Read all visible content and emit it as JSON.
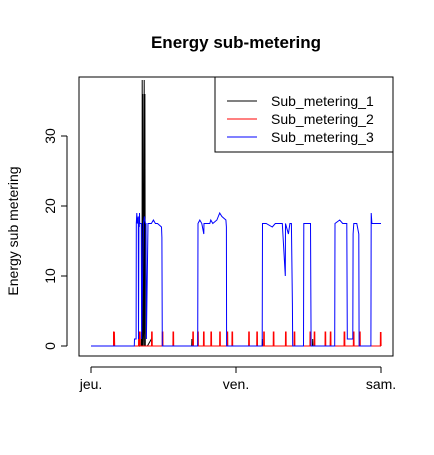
{
  "chart_data": {
    "type": "line",
    "title": "Energy sub-metering",
    "xlabel": "",
    "ylabel": "Energy sub metering",
    "x_ticks": [
      {
        "value": 0,
        "label": "jeu."
      },
      {
        "value": 1440,
        "label": "ven."
      },
      {
        "value": 2880,
        "label": "sam."
      }
    ],
    "x_unit": "minutes from jeu. 00:00",
    "xlim": [
      0,
      2880
    ],
    "y_ticks": [
      0,
      10,
      20,
      30
    ],
    "ylim": [
      0,
      38
    ],
    "legend_position": "top-right",
    "grid": false,
    "series": [
      {
        "name": "Sub_metering_1",
        "color": "#000000",
        "points": [
          [
            0,
            0
          ],
          [
            500,
            0
          ],
          [
            502,
            2
          ],
          [
            506,
            0
          ],
          [
            508,
            38
          ],
          [
            512,
            0
          ],
          [
            514,
            36
          ],
          [
            518,
            0
          ],
          [
            522,
            2
          ],
          [
            528,
            38
          ],
          [
            532,
            0
          ],
          [
            535,
            36
          ],
          [
            539,
            0
          ],
          [
            560,
            0
          ],
          [
            600,
            1
          ],
          [
            602,
            0
          ],
          [
            1000,
            0
          ],
          [
            1002,
            1
          ],
          [
            1004,
            0
          ],
          [
            1700,
            0
          ],
          [
            1702,
            1
          ],
          [
            1704,
            0
          ],
          [
            2200,
            0
          ],
          [
            2202,
            1
          ],
          [
            2204,
            0
          ],
          [
            2880,
            0
          ]
        ]
      },
      {
        "name": "Sub_metering_2",
        "color": "#ff0000",
        "points": [
          [
            0,
            0
          ],
          [
            223,
            0
          ],
          [
            225,
            2
          ],
          [
            232,
            2
          ],
          [
            235,
            0
          ],
          [
            480,
            0
          ],
          [
            482,
            2
          ],
          [
            488,
            2
          ],
          [
            490,
            0
          ],
          [
            2880,
            0
          ]
        ],
        "spike_times": [
          223,
          473,
          602,
          708,
          814,
          1011,
          1060,
          1117,
          1191,
          1278,
          1352,
          1400,
          1566,
          1647,
          1715,
          1810,
          1932,
          2018,
          2175,
          2217,
          2325,
          2376,
          2514,
          2606,
          2667,
          2874
        ],
        "spike_value": 2
      },
      {
        "name": "Sub_metering_3",
        "color": "#0000ff",
        "points": [
          [
            0,
            0
          ],
          [
            430,
            0
          ],
          [
            432,
            1
          ],
          [
            448,
            1
          ],
          [
            450,
            17.5
          ],
          [
            455,
            19
          ],
          [
            460,
            17.5
          ],
          [
            470,
            18.5
          ],
          [
            472,
            1
          ],
          [
            476,
            17.5
          ],
          [
            480,
            17
          ],
          [
            482,
            19
          ],
          [
            484,
            17.5
          ],
          [
            500,
            17.5
          ],
          [
            503,
            1
          ],
          [
            520,
            17.5
          ],
          [
            530,
            18.5
          ],
          [
            540,
            17.5
          ],
          [
            546,
            17.5
          ],
          [
            550,
            1
          ],
          [
            566,
            17.5
          ],
          [
            600,
            17.5
          ],
          [
            620,
            18
          ],
          [
            640,
            17.5
          ],
          [
            660,
            17.5
          ],
          [
            700,
            17
          ],
          [
            704,
            15.5
          ],
          [
            708,
            0
          ],
          [
            1060,
            0
          ],
          [
            1063,
            17.5
          ],
          [
            1080,
            18
          ],
          [
            1100,
            17.5
          ],
          [
            1120,
            16
          ],
          [
            1122,
            17.5
          ],
          [
            1140,
            17.5
          ],
          [
            1180,
            17.5
          ],
          [
            1190,
            18
          ],
          [
            1210,
            17.5
          ],
          [
            1250,
            18
          ],
          [
            1278,
            19
          ],
          [
            1300,
            18.5
          ],
          [
            1340,
            18
          ],
          [
            1345,
            17
          ],
          [
            1347,
            0
          ],
          [
            1700,
            0
          ],
          [
            1703,
            17.5
          ],
          [
            1740,
            17.5
          ],
          [
            1800,
            17
          ],
          [
            1830,
            17.5
          ],
          [
            1880,
            17.5
          ],
          [
            1900,
            17.5
          ],
          [
            1930,
            10
          ],
          [
            1932,
            17.5
          ],
          [
            1960,
            16
          ],
          [
            1975,
            17.5
          ],
          [
            1990,
            17.5
          ],
          [
            2000,
            6
          ],
          [
            2003,
            0
          ],
          [
            2110,
            0
          ],
          [
            2113,
            17.5
          ],
          [
            2180,
            17.5
          ],
          [
            2186,
            0
          ],
          [
            2420,
            0
          ],
          [
            2423,
            17.5
          ],
          [
            2470,
            18
          ],
          [
            2500,
            17.5
          ],
          [
            2540,
            17.5
          ],
          [
            2545,
            1
          ],
          [
            2600,
            1
          ],
          [
            2603,
            16
          ],
          [
            2610,
            17.5
          ],
          [
            2640,
            17.5
          ],
          [
            2660,
            16
          ],
          [
            2663,
            0
          ],
          [
            2780,
            0
          ],
          [
            2783,
            19
          ],
          [
            2790,
            17.5
          ],
          [
            2880,
            17.5
          ]
        ]
      }
    ]
  }
}
